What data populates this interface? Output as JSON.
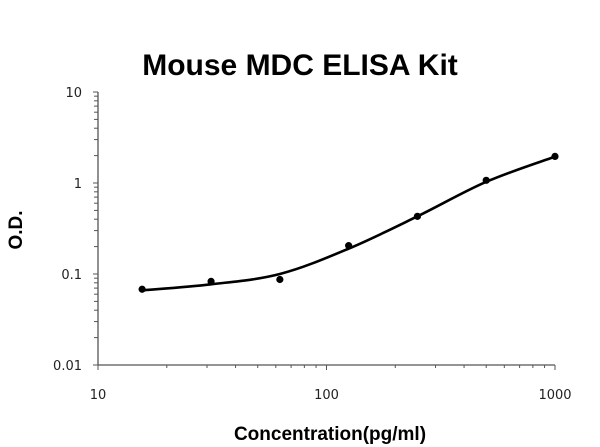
{
  "chart_data": {
    "type": "scatter",
    "title": "Mouse MDC ELISA Kit",
    "xlabel": "Concentration(pg/ml)",
    "ylabel": "O.D.",
    "x_scale": "log",
    "y_scale": "log",
    "xlim": [
      10,
      1000
    ],
    "ylim": [
      0.01,
      10
    ],
    "x_ticks": [
      "10",
      "100",
      "1000"
    ],
    "y_ticks": [
      "10",
      "1",
      "0.1",
      "0.01"
    ],
    "grid": false,
    "series": [
      {
        "x": [
          15.6,
          31.25,
          62.5,
          125,
          250,
          500,
          1000
        ],
        "y": [
          0.068,
          0.083,
          0.087,
          0.205,
          0.43,
          1.07,
          1.96
        ]
      }
    ],
    "fit_curve": {
      "x": [
        15.6,
        31.25,
        62.5,
        125,
        250,
        500,
        1000
      ],
      "y": [
        0.066,
        0.077,
        0.1,
        0.19,
        0.43,
        1.03,
        1.95
      ]
    },
    "colors": {
      "marks": "#000000",
      "axes": "#555555"
    }
  }
}
